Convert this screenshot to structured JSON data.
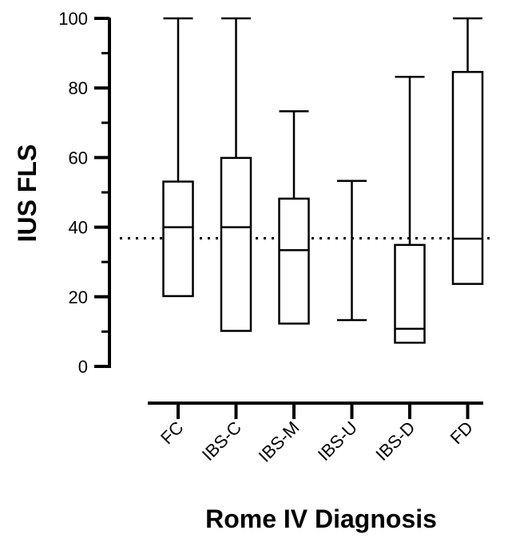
{
  "chart_data": {
    "type": "box",
    "title": "",
    "xlabel": "Rome IV Diagnosis",
    "ylabel": "IUS FLS",
    "ylim": [
      0,
      100
    ],
    "yticks": [
      0,
      20,
      40,
      60,
      80,
      100
    ],
    "ytick_labels": [
      "0",
      "20",
      "40",
      "60",
      "80",
      "100"
    ],
    "minor_ticks": true,
    "reference_line": {
      "value": 36.8,
      "style": "dotted"
    },
    "grid": false,
    "legend": "none",
    "categories": [
      "FC",
      "IBS-C",
      "IBS-M",
      "IBS-U",
      "IBS-D",
      "FD"
    ],
    "boxes": [
      {
        "category": "FC",
        "min": 20.2,
        "q1": 20.2,
        "median": 40.0,
        "q3": 53.1,
        "max": 100.0
      },
      {
        "category": "IBS-C",
        "min": 10.2,
        "q1": 10.2,
        "median": 40.0,
        "q3": 59.9,
        "max": 100.0
      },
      {
        "category": "IBS-M",
        "min": 12.3,
        "q1": 12.3,
        "median": 33.4,
        "q3": 48.2,
        "max": 73.3
      },
      {
        "category": "IBS-U",
        "min": 13.3,
        "q1": null,
        "median": null,
        "q3": null,
        "max": 53.3
      },
      {
        "category": "IBS-D",
        "min": 6.8,
        "q1": 6.8,
        "median": 10.8,
        "q3": 34.9,
        "max": 83.2
      },
      {
        "category": "FD",
        "min": 23.7,
        "q1": 23.7,
        "median": 36.7,
        "q3": 84.6,
        "max": 100.0
      }
    ]
  }
}
